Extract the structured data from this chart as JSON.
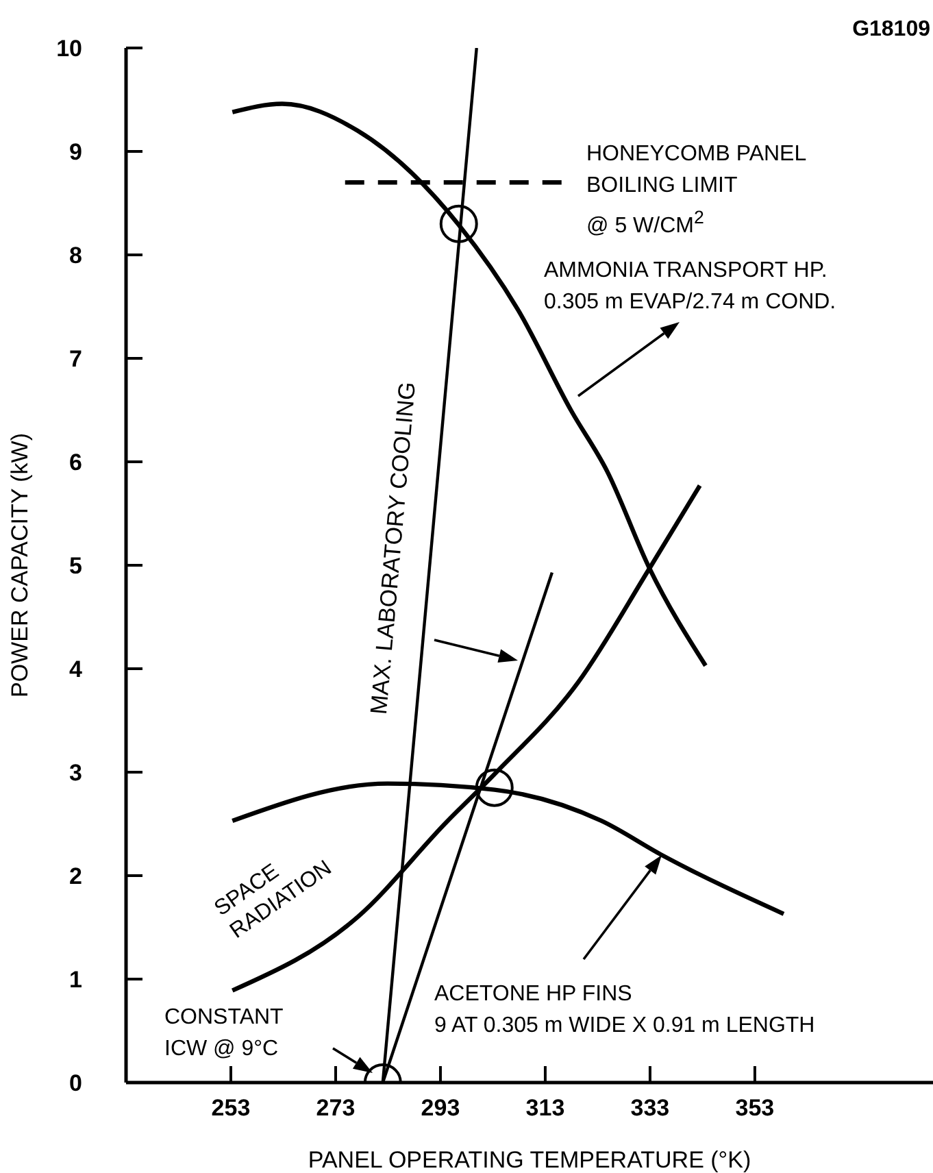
{
  "chart_data": {
    "type": "line",
    "xlabel": "PANEL OPERATING TEMPERATURE (°K)",
    "ylabel": "POWER CAPACITY (kW)",
    "xlim": [
      233,
      387
    ],
    "ylim": [
      0,
      10
    ],
    "xticks": [
      253,
      273,
      293,
      313,
      333,
      353
    ],
    "yticks": [
      0,
      1,
      2,
      3,
      4,
      5,
      6,
      7,
      8,
      9,
      10
    ],
    "grid": false,
    "legend": false,
    "marker": "none",
    "series": [
      {
        "name": "AMMONIA TRANSPORT HP.\n0.305 m EVAP/2.74 m COND.",
        "color": "#000000",
        "x": [
          253.3,
          262.8,
          277.2,
          296.5,
          307.8,
          318,
          324.8,
          332.9,
          343.6
        ],
        "values": [
          9.38,
          9.46,
          9.2,
          8.29,
          7.47,
          6.49,
          5.91,
          4.97,
          4.03
        ]
      },
      {
        "name": "SPACE\nRADIATION",
        "color": "#000000",
        "x": [
          253.3,
          277.2,
          294.2,
          303.3,
          319.3,
          332.9,
          342.5
        ],
        "values": [
          0.89,
          1.6,
          2.52,
          2.98,
          3.87,
          4.97,
          5.77
        ]
      },
      {
        "name": "ACETONE HP FINS\n9 AT 0.305 m WIDE X 0.91 m LENGTH",
        "color": "#000000",
        "x": [
          253.3,
          282.9,
          303.3,
          323.7,
          335.2,
          358.5
        ],
        "values": [
          2.53,
          2.89,
          2.83,
          2.53,
          2.2,
          1.63
        ]
      },
      {
        "name": "MAX. LABORATORY COOLING",
        "color": "#000000",
        "x": [
          282,
          299.9
        ],
        "values": [
          0,
          10
        ]
      },
      {
        "color": "#000000",
        "x": [
          282,
          314.3
        ],
        "values": [
          0,
          4.93
        ]
      },
      {
        "name": "HONEYCOMB PANEL\nBOILING LIMIT\n@ 5 W/CM$^{2}$",
        "color": "#000000",
        "line_style": "dashed",
        "x": [
          274.8,
          317.4
        ],
        "values": [
          8.7,
          8.7
        ]
      },
      {
        "type": "scatter",
        "marker": "circle",
        "color": "#000000",
        "x": [
          296.5,
          303.3,
          282
        ],
        "values": [
          8.3,
          2.85,
          0
        ]
      }
    ],
    "annotations": [
      "G18109",
      "CONSTANT\nICW @ 9°C"
    ]
  }
}
